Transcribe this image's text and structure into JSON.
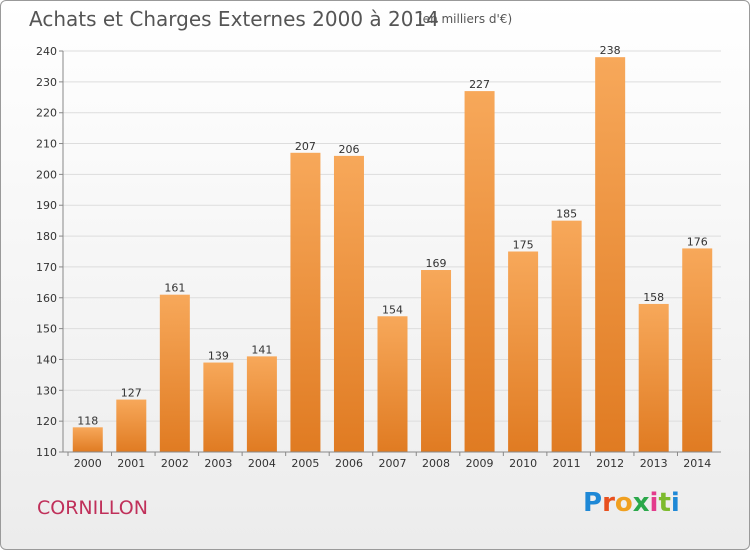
{
  "header": {
    "title": "Achats et Charges Externes 2000 à 2014",
    "subtitle": "(en milliers d'€)"
  },
  "footer": {
    "city": "CORNILLON",
    "logo_text": "Proxiti",
    "logo_colors": [
      "#1e88d6",
      "#e8501e",
      "#f0a020",
      "#2aa84a",
      "#e33b8c",
      "#7dbb2e",
      "#1e88d6"
    ]
  },
  "colors": {
    "bar_top": "#f7a85a",
    "bar_bottom": "#e07b22",
    "grid": "#dddddd",
    "axis": "#888888"
  },
  "chart_data": {
    "type": "bar",
    "title": "Achats et Charges Externes 2000 à 2014",
    "subtitle": "(en milliers d'€)",
    "xlabel": "",
    "ylabel": "",
    "ylim": [
      110,
      240
    ],
    "yticks": [
      110,
      120,
      130,
      140,
      150,
      160,
      170,
      180,
      190,
      200,
      210,
      220,
      230,
      240
    ],
    "grid": true,
    "categories": [
      "2000",
      "2001",
      "2002",
      "2003",
      "2004",
      "2005",
      "2006",
      "2007",
      "2008",
      "2009",
      "2010",
      "2011",
      "2012",
      "2013",
      "2014"
    ],
    "values": [
      118,
      127,
      161,
      139,
      141,
      207,
      206,
      154,
      169,
      227,
      175,
      185,
      238,
      158,
      176
    ]
  }
}
